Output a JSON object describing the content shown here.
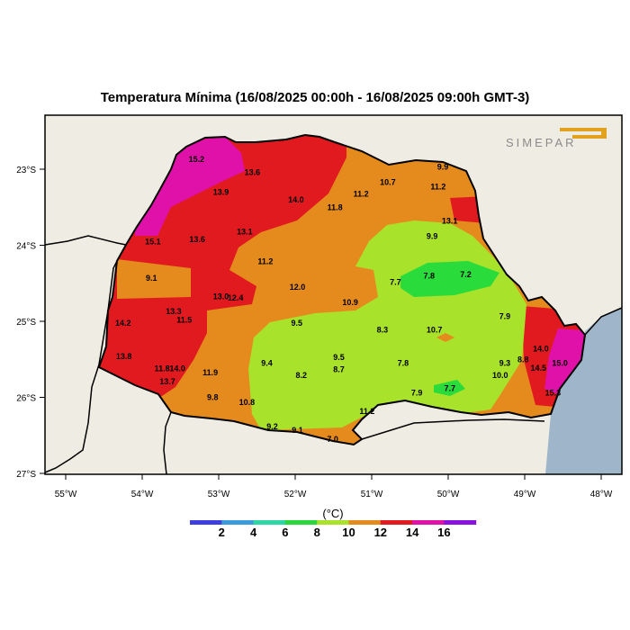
{
  "map": {
    "title": "Temperatura Mínima (16/08/2025 00:00h - 16/08/2025 09:00h GMT-3)",
    "logo_text": "SIMEPAR",
    "units_label": "(°C)",
    "lat_ticks": [
      "23°S",
      "24°S",
      "25°S",
      "26°S",
      "27°S"
    ],
    "lon_ticks": [
      "55°W",
      "54°W",
      "53°W",
      "52°W",
      "51°W",
      "50°W",
      "49°W",
      "48°W"
    ],
    "colors": {
      "land": "#efede3",
      "ocean": "#9fb6ca",
      "t8_10": "#a9e22b",
      "t10_12": "#e58b1d",
      "t12_14": "#e01a1f",
      "t14_16": "#e011a8",
      "t6_8": "#2adb3c"
    },
    "colorbar": {
      "colors": [
        "#3d3fe0",
        "#3a9bdc",
        "#2ed6a4",
        "#2ad73a",
        "#a9e22b",
        "#e58b1d",
        "#e01a1f",
        "#e011a8",
        "#8a12e0"
      ],
      "labels": [
        "2",
        "4",
        "6",
        "8",
        "10",
        "12",
        "14",
        "16"
      ]
    },
    "station_values": [
      {
        "t": "15.2",
        "lon": -53.29,
        "lat": -22.88
      },
      {
        "t": "13.6",
        "lon": -52.56,
        "lat": -23.05
      },
      {
        "t": "13.9",
        "lon": -52.97,
        "lat": -23.31
      },
      {
        "t": "14.0",
        "lon": -51.99,
        "lat": -23.41
      },
      {
        "t": "11.2",
        "lon": -51.14,
        "lat": -23.33
      },
      {
        "t": "10.7",
        "lon": -50.79,
        "lat": -23.18
      },
      {
        "t": "9.9",
        "lon": -50.07,
        "lat": -22.98
      },
      {
        "t": "11.2",
        "lon": -50.13,
        "lat": -23.24
      },
      {
        "t": "13.1",
        "lon": -49.98,
        "lat": -23.69
      },
      {
        "t": "11.8",
        "lon": -51.48,
        "lat": -23.51
      },
      {
        "t": "15.1",
        "lon": -53.86,
        "lat": -23.96
      },
      {
        "t": "13.6",
        "lon": -53.28,
        "lat": -23.93
      },
      {
        "t": "13.1",
        "lon": -52.66,
        "lat": -23.83
      },
      {
        "t": "9.9",
        "lon": -50.21,
        "lat": -23.89
      },
      {
        "t": "11.2",
        "lon": -52.39,
        "lat": -24.22
      },
      {
        "t": "9.1",
        "lon": -53.88,
        "lat": -24.44
      },
      {
        "t": "12.0",
        "lon": -51.97,
        "lat": -24.56
      },
      {
        "t": "7.7",
        "lon": -50.69,
        "lat": -24.49
      },
      {
        "t": "7.8",
        "lon": -50.25,
        "lat": -24.41
      },
      {
        "t": "7.2",
        "lon": -49.77,
        "lat": -24.39
      },
      {
        "t": "13.0",
        "lon": -52.97,
        "lat": -24.68
      },
      {
        "t": "12.4",
        "lon": -52.78,
        "lat": -24.7
      },
      {
        "t": "10.9",
        "lon": -51.28,
        "lat": -24.76
      },
      {
        "t": "13.3",
        "lon": -53.59,
        "lat": -24.88
      },
      {
        "t": "11.5",
        "lon": -53.45,
        "lat": -24.99
      },
      {
        "t": "7.9",
        "lon": -49.26,
        "lat": -24.94
      },
      {
        "t": "14.2",
        "lon": -54.25,
        "lat": -25.03
      },
      {
        "t": "9.5",
        "lon": -51.98,
        "lat": -25.03
      },
      {
        "t": "8.3",
        "lon": -50.86,
        "lat": -25.12
      },
      {
        "t": "10.7",
        "lon": -50.18,
        "lat": -25.12
      },
      {
        "t": "14.0",
        "lon": -48.79,
        "lat": -25.37
      },
      {
        "t": "13.8",
        "lon": -54.24,
        "lat": -25.47
      },
      {
        "t": "9.5",
        "lon": -51.43,
        "lat": -25.48
      },
      {
        "t": "8.8",
        "lon": -49.02,
        "lat": -25.51
      },
      {
        "t": "9.3",
        "lon": -49.26,
        "lat": -25.56
      },
      {
        "t": "15.0",
        "lon": -48.54,
        "lat": -25.56
      },
      {
        "t": "9.4",
        "lon": -52.37,
        "lat": -25.56
      },
      {
        "t": "7.8",
        "lon": -50.59,
        "lat": -25.56
      },
      {
        "t": "11.8",
        "lon": -53.74,
        "lat": -25.63
      },
      {
        "t": "14.0",
        "lon": -53.54,
        "lat": -25.63
      },
      {
        "t": "11.9",
        "lon": -53.11,
        "lat": -25.68
      },
      {
        "t": "8.7",
        "lon": -51.43,
        "lat": -25.64
      },
      {
        "t": "14.5",
        "lon": -48.82,
        "lat": -25.62
      },
      {
        "t": "8.2",
        "lon": -51.92,
        "lat": -25.72
      },
      {
        "t": "10.0",
        "lon": -49.32,
        "lat": -25.72
      },
      {
        "t": "13.7",
        "lon": -53.67,
        "lat": -25.8
      },
      {
        "t": "7.9",
        "lon": -50.41,
        "lat": -25.95
      },
      {
        "t": "7.7",
        "lon": -49.98,
        "lat": -25.89
      },
      {
        "t": "15.3",
        "lon": -48.63,
        "lat": -25.95
      },
      {
        "t": "9.8",
        "lon": -53.08,
        "lat": -26.01
      },
      {
        "t": "10.8",
        "lon": -52.63,
        "lat": -26.07
      },
      {
        "t": "11.2",
        "lon": -51.06,
        "lat": -26.19
      },
      {
        "t": "9.2",
        "lon": -52.3,
        "lat": -26.39
      },
      {
        "t": "9.1",
        "lon": -51.97,
        "lat": -26.44
      },
      {
        "t": "7.0",
        "lon": -51.51,
        "lat": -26.56
      }
    ]
  }
}
